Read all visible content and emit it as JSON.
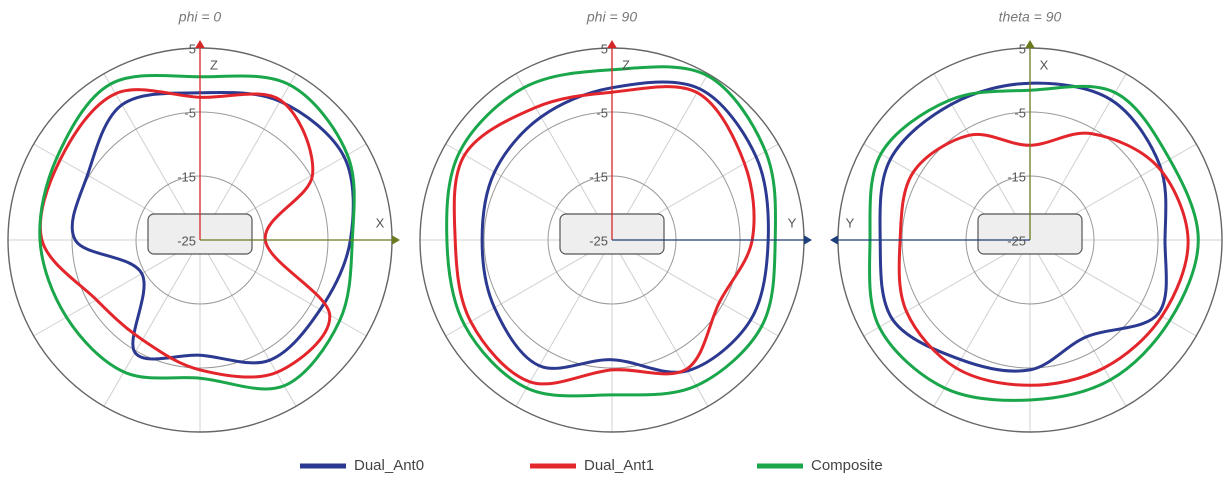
{
  "chart_data": [
    {
      "type": "polar",
      "title": "phi = 0",
      "x": [
        0,
        30,
        60,
        90,
        120,
        150,
        180,
        210,
        240,
        270,
        300,
        330
      ],
      "xlim": [
        0,
        360
      ],
      "rlim": [
        -25,
        5
      ],
      "rticks": [
        5,
        -5,
        -15,
        -25
      ],
      "grid": true,
      "axes": [
        {
          "label": "Z",
          "direction": "up",
          "color": "#d62728"
        },
        {
          "label": "X",
          "direction": "right",
          "color": "#6b7a1e"
        }
      ],
      "series": [
        {
          "name": "Dual_Ant0",
          "color": "#2b3990",
          "values": [
            -2,
            0,
            1,
            -1.5,
            -3.3,
            -3.3,
            -7,
            -4.7,
            -14.5,
            -5.5,
            -4.7,
            -0.6
          ]
        },
        {
          "name": "Dual_Ant1",
          "color": "#e3262b",
          "values": [
            -2.7,
            0.2,
            -4.7,
            -14.8,
            -1.6,
            -1.1,
            -4.7,
            -7,
            -6.3,
            -0.3,
            0.2,
            1.4
          ]
        },
        {
          "name": "Composite",
          "color": "#1aa64a",
          "values": [
            0.5,
            3,
            1.6,
            -1.2,
            0.2,
            1.3,
            -3.4,
            -1.2,
            -0.9,
            0,
            0.8,
            3.1
          ]
        }
      ]
    },
    {
      "type": "polar",
      "title": "phi = 90",
      "x": [
        0,
        30,
        60,
        90,
        120,
        150,
        180,
        210,
        240,
        270,
        300,
        330
      ],
      "xlim": [
        0,
        360
      ],
      "rlim": [
        -25,
        5
      ],
      "rticks": [
        5,
        -5,
        -15,
        -25
      ],
      "grid": true,
      "axes": [
        {
          "label": "Z",
          "direction": "up",
          "color": "#d62728"
        },
        {
          "label": "Y",
          "direction": "right",
          "color": "#1f3f7a"
        }
      ],
      "series": [
        {
          "name": "Dual_Ant0",
          "color": "#2b3990",
          "values": [
            -1.2,
            2.3,
            1,
            -0.6,
            0,
            -1.4,
            -6.3,
            -2.3,
            -3.8,
            -4.7,
            -3.8,
            -2.8
          ]
        },
        {
          "name": "Dual_Ant1",
          "color": "#e3262b",
          "values": [
            -1.9,
            1.6,
            -1.1,
            -3.1,
            -5.6,
            -1.7,
            -4.7,
            0.6,
            0.5,
            -0.5,
            1.6,
            -1.1
          ]
        },
        {
          "name": "Composite",
          "color": "#1aa64a",
          "values": [
            1.6,
            4.7,
            2.7,
            0.5,
            2,
            1.3,
            -0.8,
            1.7,
            1.6,
            0.8,
            2.5,
            2.5
          ]
        }
      ]
    },
    {
      "type": "polar",
      "title": "theta = 90",
      "x": [
        0,
        30,
        60,
        90,
        120,
        150,
        180,
        210,
        240,
        270,
        300,
        330
      ],
      "xlim": [
        0,
        360
      ],
      "rlim": [
        -25,
        5
      ],
      "rticks": [
        5,
        -5,
        -15,
        -25
      ],
      "grid": true,
      "axes": [
        {
          "label": "X",
          "direction": "up",
          "color": "#6b7a1e"
        },
        {
          "label": "Y",
          "direction": "left",
          "color": "#1f3f7a"
        }
      ],
      "series": [
        {
          "name": "Dual_Ant0",
          "color": "#2b3990",
          "values": [
            -0.5,
            0.3,
            -1.6,
            -3.9,
            -1.9,
            -7.5,
            -4.7,
            -3.4,
            -0.2,
            -1.6,
            0.2,
            -0.5
          ]
        },
        {
          "name": "Dual_Ant1",
          "color": "#e3262b",
          "values": [
            -10.2,
            -5.8,
            -2,
            -0.3,
            -1.2,
            -1.9,
            -2.3,
            -1.9,
            -2.7,
            -4.7,
            -3.9,
            -6.1
          ]
        },
        {
          "name": "Composite",
          "color": "#1aa64a",
          "values": [
            -1.6,
            1.6,
            0.2,
            1.3,
            0.2,
            0.2,
            0,
            1.7,
            2.2,
            0,
            1.9,
            0.2
          ]
        }
      ]
    }
  ]
}
